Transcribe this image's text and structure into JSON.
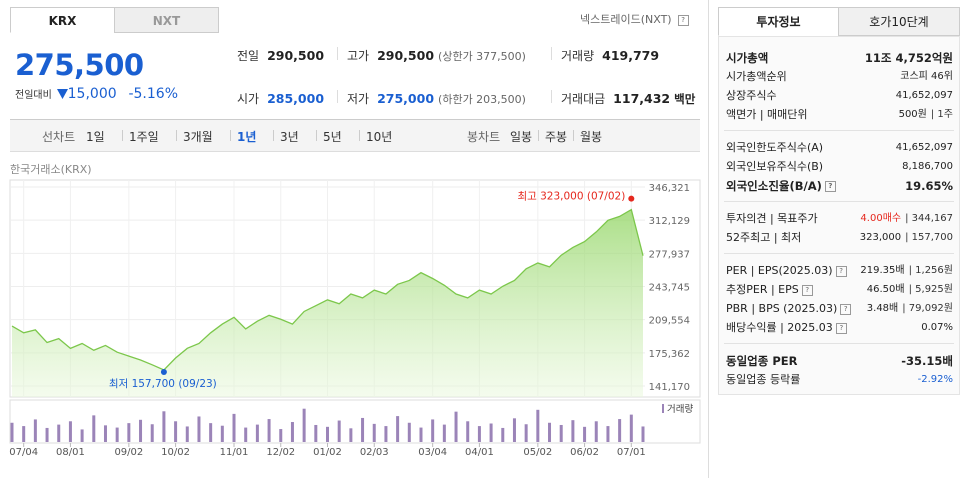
{
  "tabs": [
    "KRX",
    "NXT"
  ],
  "nxt_link": "넥스트레이드(NXT)",
  "price": {
    "value": "275,500",
    "change_label": "전일대비",
    "change": "15,000",
    "change_pct": "-5.16%"
  },
  "quotes": [
    [
      {
        "label": "전일",
        "value": "290,500",
        "color": "#222222"
      },
      {
        "label": "고가",
        "value": "290,500",
        "note": "(상한가 377,500)",
        "color": "#222222"
      },
      {
        "label": "거래량",
        "value": "419,779",
        "color": "#222222"
      }
    ],
    [
      {
        "label": "시가",
        "value": "285,000",
        "color": "#1a5fd1"
      },
      {
        "label": "저가",
        "value": "275,000",
        "note": "(하한가 203,500)",
        "color": "#1a5fd1"
      },
      {
        "label": "거래대금",
        "value": "117,432",
        "note": "백만",
        "color": "#222222"
      }
    ]
  ],
  "period_bar": {
    "line_label": "선차트",
    "line_options": [
      "1일",
      "1주일",
      "3개월",
      "1년",
      "3년",
      "5년",
      "10년"
    ],
    "selected": 3,
    "candle_label": "봉차트",
    "candle_options": [
      "일봉",
      "주봉",
      "월봉"
    ]
  },
  "chart_data": {
    "type": "line",
    "source": "한국거래소(KRX)",
    "categories": [
      null,
      "07/04",
      null,
      null,
      null,
      "08/01",
      null,
      null,
      null,
      null,
      "09/02",
      null,
      null,
      null,
      "10/02",
      null,
      null,
      null,
      null,
      "11/01",
      null,
      null,
      null,
      "12/02",
      null,
      null,
      null,
      "01/02",
      null,
      null,
      null,
      "02/03",
      null,
      null,
      null,
      null,
      "03/04",
      null,
      null,
      null,
      "04/01",
      null,
      null,
      null,
      null,
      "05/02",
      null,
      null,
      null,
      "06/02",
      null,
      null,
      null,
      "07/01",
      null
    ],
    "series": [
      {
        "color": "#7cc74b",
        "values": [
          203000,
          196000,
          199000,
          186000,
          190000,
          180000,
          185000,
          178000,
          183000,
          176000,
          172000,
          168000,
          163000,
          157700,
          170000,
          180000,
          185000,
          196000,
          205000,
          212000,
          200000,
          208000,
          214000,
          210000,
          205000,
          218000,
          224000,
          230000,
          226000,
          236000,
          232000,
          240000,
          236000,
          246000,
          250000,
          258000,
          252000,
          245000,
          236000,
          232000,
          240000,
          236000,
          244000,
          250000,
          262000,
          268000,
          264000,
          276000,
          284000,
          290000,
          300000,
          312000,
          316000,
          323000,
          275500
        ]
      }
    ],
    "ylim": [
      141170,
      346321
    ],
    "yticks": [
      {
        "value": 346321,
        "label": "346,321"
      },
      {
        "value": 312129,
        "label": "312,129"
      },
      {
        "value": 277937,
        "label": "277,937"
      },
      {
        "value": 243745,
        "label": "243,745"
      },
      {
        "value": 209554,
        "label": "209,554"
      },
      {
        "value": 175362,
        "label": "175,362"
      },
      {
        "value": 141170,
        "label": "141,170"
      }
    ],
    "grid": true,
    "max_label": "최고 323,000 (07/02)",
    "max_color": "#e5281e",
    "min_label": "최저 157,700 (09/23)",
    "min_color": "#1a5fd1",
    "volume": {
      "label": "거래량",
      "color": "#9b84b8",
      "ylim": [
        0,
        1000000
      ],
      "values": [
        520000,
        430000,
        610000,
        380000,
        470000,
        560000,
        340000,
        720000,
        450000,
        390000,
        510000,
        600000,
        480000,
        830000,
        560000,
        420000,
        690000,
        510000,
        440000,
        760000,
        390000,
        470000,
        620000,
        350000,
        540000,
        900000,
        460000,
        410000,
        580000,
        370000,
        650000,
        490000,
        430000,
        700000,
        520000,
        390000,
        610000,
        470000,
        820000,
        560000,
        430000,
        500000,
        380000,
        640000,
        480000,
        870000,
        520000,
        460000,
        590000,
        410000,
        560000,
        430000,
        620000,
        740000,
        419779
      ]
    }
  },
  "info_tabs": [
    "투자정보",
    "호가10단계"
  ],
  "info_groups": [
    [
      {
        "label": "시가총액",
        "value": [
          "11조 4,752억원"
        ],
        "bold": true
      },
      {
        "label": "시가총액순위",
        "value": [
          "코스피 46위"
        ]
      },
      {
        "label": "상장주식수",
        "value": [
          "41,652,097"
        ]
      },
      {
        "label": "액면가 | 매매단위",
        "value": [
          "500원",
          "| 1주"
        ]
      }
    ],
    [
      {
        "label": "외국인한도주식수(A)",
        "value": [
          "41,652,097"
        ]
      },
      {
        "label": "외국인보유주식수(B)",
        "value": [
          "8,186,700"
        ]
      },
      {
        "label": "외국인소진율(B/A)",
        "value": [
          "19.65%"
        ],
        "bold": true,
        "help": true
      }
    ],
    [
      {
        "label": "투자의견 | 목표주가",
        "value": [
          "4.00매수",
          "| 344,167"
        ],
        "value_color": "#e5281e"
      },
      {
        "label": "52주최고 | 최저",
        "value": [
          "323,000",
          "| 157,700"
        ]
      }
    ],
    [
      {
        "label": "PER | EPS(2025.03)",
        "value": [
          "219.35배",
          "| 1,256원"
        ],
        "help": true
      },
      {
        "label": "추정PER | EPS",
        "value": [
          "46.50배",
          "| 5,925원"
        ],
        "help": true
      },
      {
        "label": "PBR | BPS (2025.03)",
        "value": [
          "3.48배",
          "| 79,092원"
        ],
        "help": true
      },
      {
        "label": "배당수익률 | 2025.03",
        "value": [
          "0.07%"
        ],
        "help": true
      }
    ],
    [
      {
        "label": "동일업종 PER",
        "value": [
          "-35.15배"
        ],
        "bold": true
      },
      {
        "label": "동일업종 등락률",
        "value": [
          "-2.92%"
        ],
        "value_color": "#1a5fd1"
      }
    ]
  ]
}
